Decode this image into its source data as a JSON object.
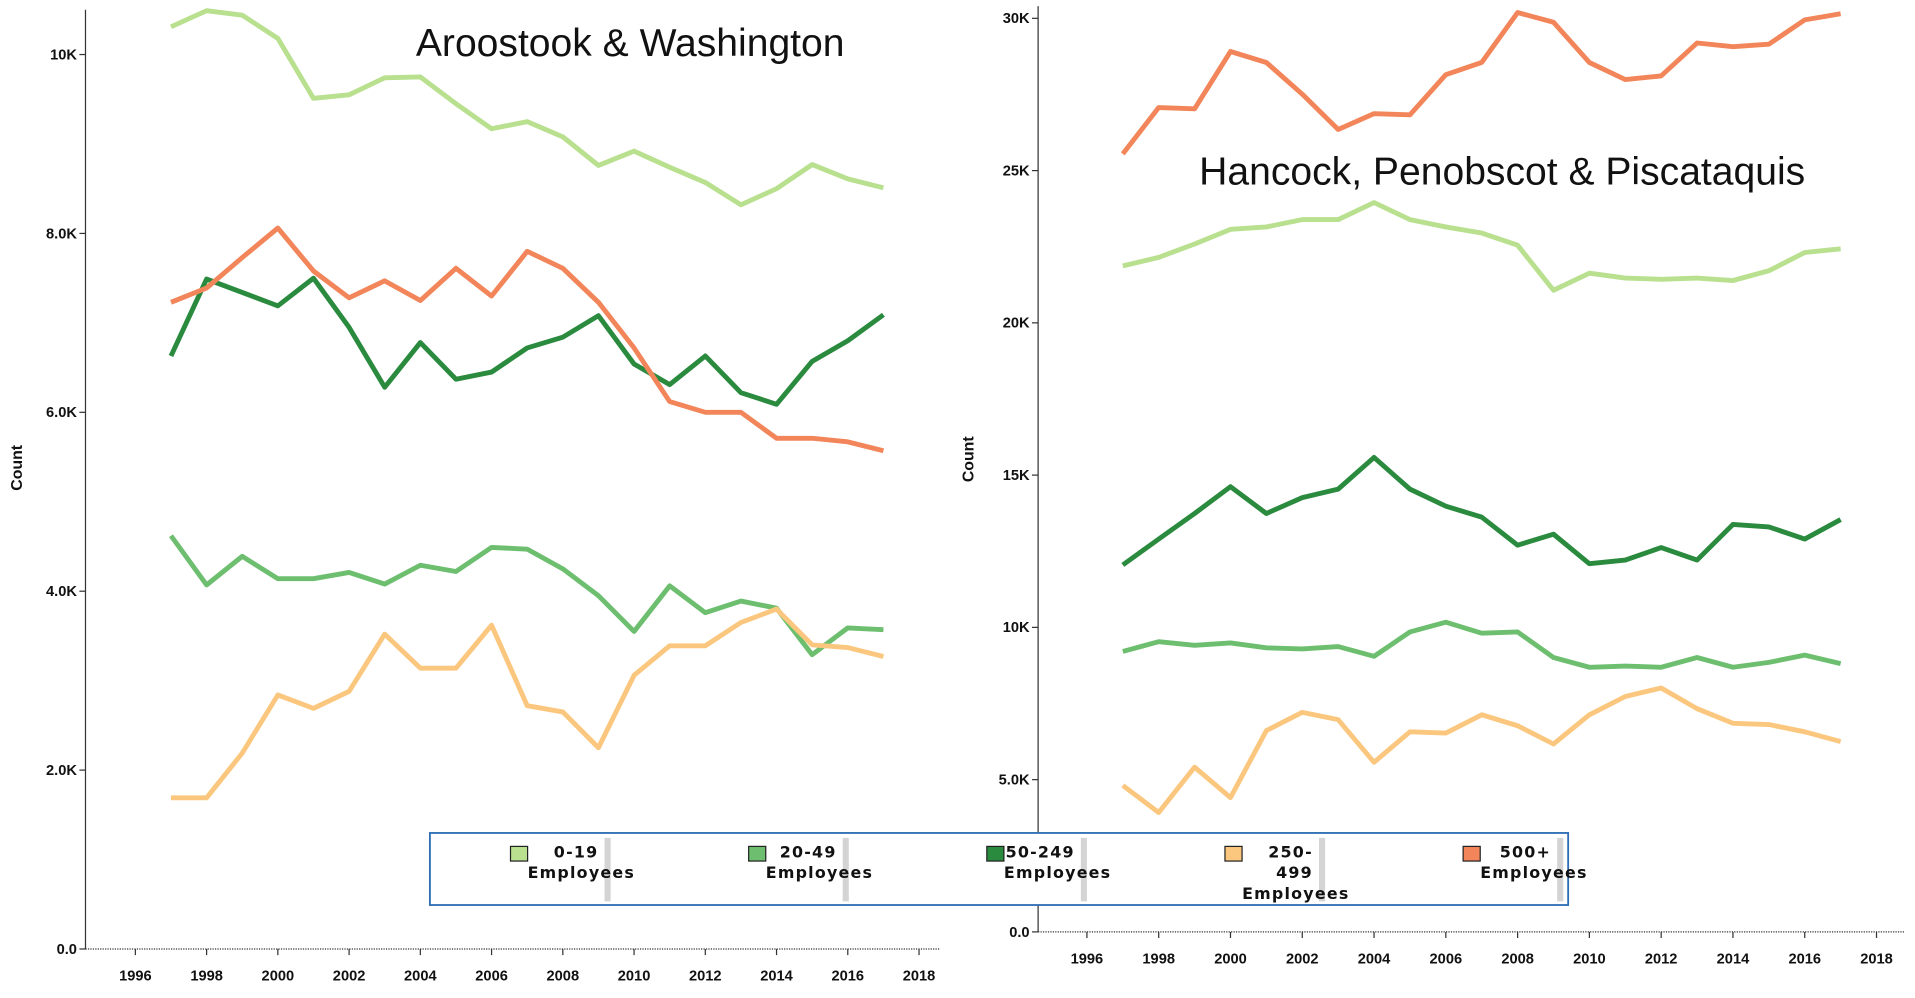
{
  "chart_data": [
    {
      "type": "line",
      "title": "Aroostook & Washington",
      "y_label": "Count",
      "x": [
        1997,
        1998,
        1999,
        2000,
        2001,
        2002,
        2003,
        2004,
        2005,
        2006,
        2007,
        2008,
        2009,
        2010,
        2011,
        2012,
        2013,
        2014,
        2015,
        2016,
        2017
      ],
      "xlim": [
        1994.6,
        2018.6
      ],
      "xticks": [
        1996,
        1998,
        2000,
        2002,
        2004,
        2006,
        2008,
        2010,
        2012,
        2014,
        2016,
        2018
      ],
      "ylim": [
        0,
        10500
      ],
      "yticks": [
        {
          "value": 0,
          "label": "0.0"
        },
        {
          "value": 2000,
          "label": "2.0K"
        },
        {
          "value": 4000,
          "label": "4.0K"
        },
        {
          "value": 6000,
          "label": "6.0K"
        },
        {
          "value": 8000,
          "label": "8.0K"
        },
        {
          "value": 10000,
          "label": "10K"
        }
      ],
      "series": [
        {
          "name": "0-19 Employees",
          "color": "#b8e08e",
          "values": [
            10310,
            10490,
            10440,
            10180,
            9510,
            9550,
            9740,
            9750,
            9450,
            9170,
            9250,
            9080,
            8760,
            8920,
            8740,
            8570,
            8320,
            8500,
            8770,
            8610,
            8510
          ]
        },
        {
          "name": "20-49 Employees",
          "color": "#6dbf6f",
          "values": [
            4620,
            4070,
            4390,
            4140,
            4140,
            4210,
            4080,
            4290,
            4220,
            4490,
            4470,
            4250,
            3950,
            3550,
            4060,
            3760,
            3890,
            3810,
            3290,
            3590,
            3570
          ]
        },
        {
          "name": "50-249 Employees",
          "color": "#2a8a3e",
          "values": [
            6630,
            7490,
            7340,
            7190,
            7500,
            6950,
            6280,
            6780,
            6370,
            6450,
            6720,
            6840,
            7080,
            6540,
            6310,
            6630,
            6220,
            6090,
            6570,
            6800,
            7090
          ]
        },
        {
          "name": "250-499 Employees",
          "color": "#fbc77f",
          "values": [
            1690,
            1690,
            2190,
            2840,
            2690,
            2880,
            3520,
            3140,
            3140,
            3620,
            2720,
            2650,
            2250,
            3060,
            3390,
            3390,
            3650,
            3800,
            3400,
            3370,
            3270
          ]
        },
        {
          "name": "500+ Employees",
          "color": "#f2865a",
          "values": [
            7230,
            7390,
            7730,
            8060,
            7580,
            7280,
            7470,
            7250,
            7610,
            7300,
            7800,
            7610,
            7230,
            6720,
            6120,
            6000,
            6000,
            5710,
            5710,
            5670,
            5570
          ]
        }
      ]
    },
    {
      "type": "line",
      "title": "Hancock, Penobscot & Piscataquis",
      "y_label": "Count",
      "x": [
        1997,
        1998,
        1999,
        2000,
        2001,
        2002,
        2003,
        2004,
        2005,
        2006,
        2007,
        2008,
        2009,
        2010,
        2011,
        2012,
        2013,
        2014,
        2015,
        2016,
        2017
      ],
      "xlim": [
        1994.64,
        2018.8
      ],
      "xticks": [
        1996,
        1998,
        2000,
        2002,
        2004,
        2006,
        2008,
        2010,
        2012,
        2014,
        2016,
        2018
      ],
      "ylim": [
        0,
        30400
      ],
      "yticks": [
        {
          "value": 0,
          "label": "0.0"
        },
        {
          "value": 5000,
          "label": "5.0K"
        },
        {
          "value": 10000,
          "label": "10K"
        },
        {
          "value": 15000,
          "label": "15K"
        },
        {
          "value": 20000,
          "label": "20K"
        },
        {
          "value": 25000,
          "label": "25K"
        },
        {
          "value": 30000,
          "label": "30K"
        }
      ],
      "series": [
        {
          "color": "#b8e08e",
          "values": [
            21870,
            22150,
            22590,
            23070,
            23150,
            23390,
            23390,
            23950,
            23390,
            23150,
            22950,
            22550,
            21070,
            21630,
            21470,
            21430,
            21470,
            21390,
            21710,
            22310,
            22430
          ]
        },
        {
          "color": "#6dbf6f",
          "values": [
            9210,
            9530,
            9410,
            9490,
            9330,
            9290,
            9370,
            9050,
            9850,
            10170,
            9810,
            9850,
            9010,
            8690,
            8730,
            8690,
            9010,
            8690,
            8850,
            9090,
            8810
          ]
        },
        {
          "color": "#2a8a3e",
          "values": [
            12050,
            12900,
            13740,
            14620,
            13740,
            14260,
            14540,
            15580,
            14540,
            13980,
            13620,
            12700,
            13060,
            12090,
            12210,
            12620,
            12210,
            13380,
            13300,
            12900,
            13540
          ]
        },
        {
          "color": "#fbc77f",
          "values": [
            4810,
            3920,
            5410,
            4410,
            6610,
            7210,
            6970,
            5570,
            6570,
            6530,
            7130,
            6770,
            6170,
            7130,
            7730,
            8010,
            7330,
            6850,
            6810,
            6570,
            6250
          ]
        },
        {
          "color": "#f2865a",
          "values": [
            25550,
            27070,
            27030,
            28910,
            28550,
            27510,
            26350,
            26870,
            26830,
            28150,
            28550,
            30190,
            29870,
            28550,
            27990,
            28110,
            29190,
            29070,
            29150,
            29950,
            30150
          ]
        }
      ]
    }
  ]
}
